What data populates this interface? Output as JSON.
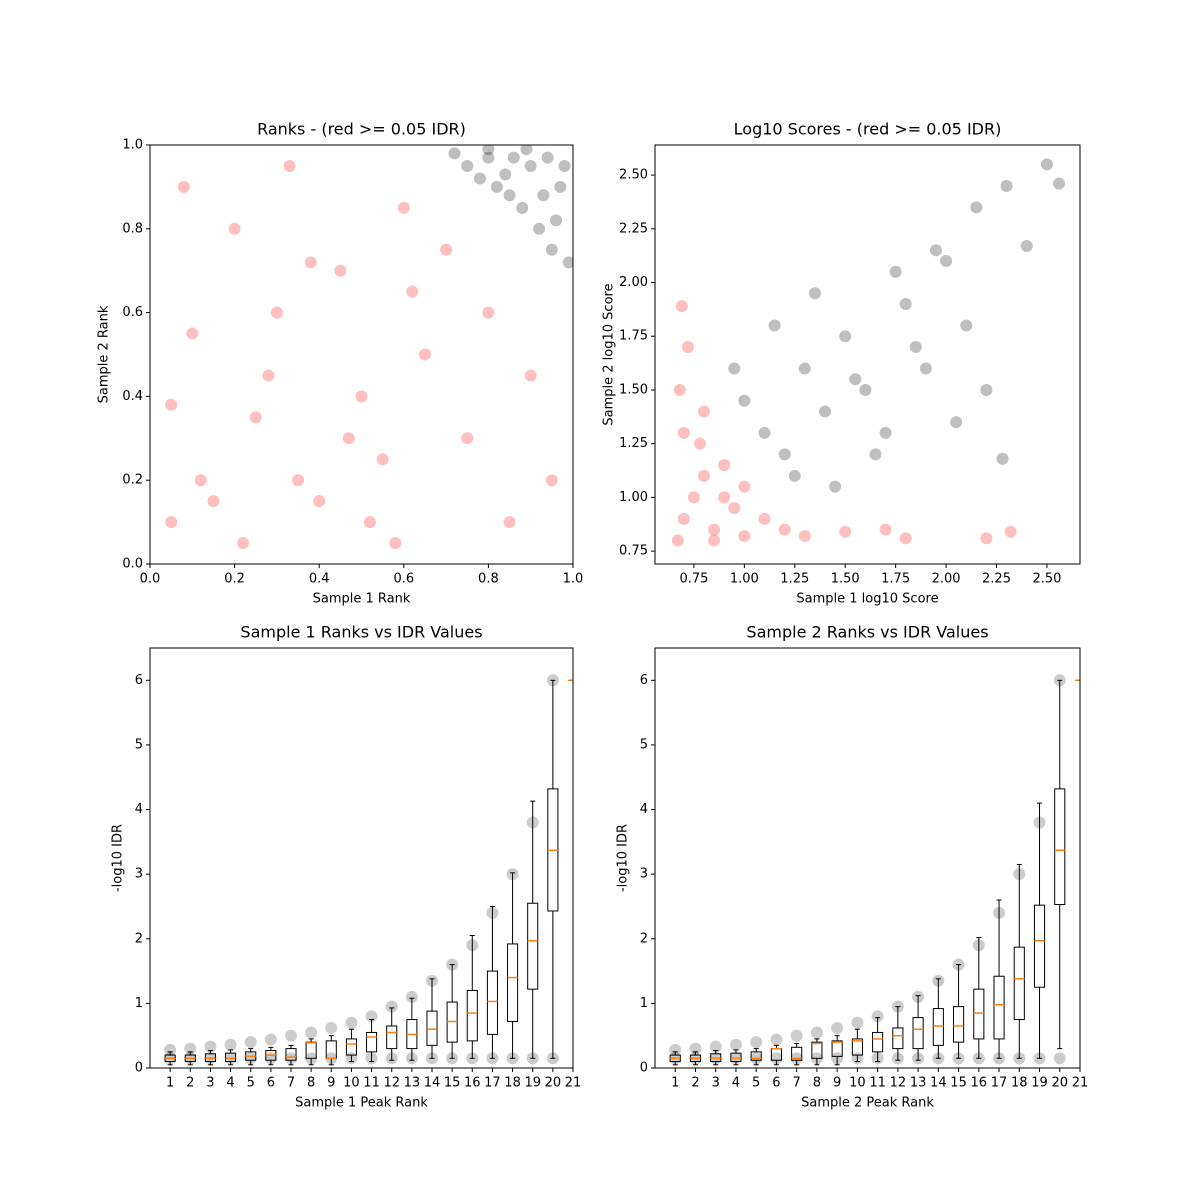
{
  "chart_data": [
    {
      "type": "scatter",
      "title": "Ranks - (red >= 0.05 IDR)",
      "xlabel": "Sample 1 Rank",
      "ylabel": "Sample 2 Rank",
      "xlim": [
        0,
        1
      ],
      "ylim": [
        0,
        1
      ],
      "xticks": [
        {
          "value": 0,
          "label": "0.0"
        },
        {
          "value": 0.2,
          "label": "0.2"
        },
        {
          "value": 0.4,
          "label": "0.4"
        },
        {
          "value": 0.6,
          "label": "0.6"
        },
        {
          "value": 0.8,
          "label": "0.8"
        },
        {
          "value": 1,
          "label": "1.0"
        }
      ],
      "yticks": [
        {
          "value": 0,
          "label": "0.0"
        },
        {
          "value": 0.2,
          "label": "0.2"
        },
        {
          "value": 0.4,
          "label": "0.4"
        },
        {
          "value": 0.6,
          "label": "0.6"
        },
        {
          "value": 0.8,
          "label": "0.8"
        },
        {
          "value": 1,
          "label": "1.0"
        }
      ],
      "series": [
        {
          "color": "#ff0000",
          "x": [
            0.05,
            0.1,
            0.15,
            0.2,
            0.25,
            0.3,
            0.35,
            0.4,
            0.45,
            0.5,
            0.55,
            0.6,
            0.65,
            0.7,
            0.75,
            0.8,
            0.85,
            0.9,
            0.95,
            0.08,
            0.22,
            0.33,
            0.47,
            0.52,
            0.62,
            0.12,
            0.28,
            0.38,
            0.58,
            0.05
          ],
          "values": [
            0.1,
            0.55,
            0.15,
            0.8,
            0.35,
            0.6,
            0.2,
            0.15,
            0.7,
            0.4,
            0.25,
            0.85,
            0.5,
            0.75,
            0.3,
            0.6,
            0.1,
            0.45,
            0.2,
            0.9,
            0.05,
            0.95,
            0.3,
            0.1,
            0.65,
            0.2,
            0.45,
            0.72,
            0.05,
            0.38
          ]
        },
        {
          "color": "#000000",
          "x": [
            0.72,
            0.75,
            0.78,
            0.8,
            0.82,
            0.85,
            0.88,
            0.9,
            0.92,
            0.95,
            0.97,
            0.99,
            0.86,
            0.93,
            0.96,
            0.89,
            0.8,
            0.98,
            0.94,
            0.84
          ],
          "values": [
            0.98,
            0.95,
            0.92,
            0.97,
            0.9,
            0.88,
            0.85,
            0.95,
            0.8,
            0.75,
            0.9,
            0.72,
            0.97,
            0.88,
            0.82,
            0.99,
            0.99,
            0.95,
            0.97,
            0.93
          ]
        }
      ]
    },
    {
      "type": "scatter",
      "title": "Log10 Scores - (red >= 0.05 IDR)",
      "xlabel": "Sample 1 log10 Score",
      "ylabel": "Sample 2 log10 Score",
      "xlim": [
        0.557,
        2.664
      ],
      "ylim": [
        0.69,
        2.64
      ],
      "xticks": [
        0.75,
        {
          "value": 1,
          "label": "1.00"
        },
        1.25,
        {
          "value": 1.5,
          "label": "1.50"
        },
        1.75,
        {
          "value": 2,
          "label": "2.00"
        },
        2.25,
        {
          "value": 2.5,
          "label": "2.50"
        }
      ],
      "yticks": [
        0.75,
        {
          "value": 1,
          "label": "1.00"
        },
        1.25,
        {
          "value": 1.5,
          "label": "1.50"
        },
        1.75,
        {
          "value": 2,
          "label": "2.00"
        },
        2.25,
        {
          "value": 2.5,
          "label": "2.50"
        }
      ],
      "series": [
        {
          "color": "#ff0000",
          "x": [
            0.67,
            0.7,
            0.75,
            0.8,
            0.85,
            0.9,
            0.95,
            1.0,
            1.1,
            1.2,
            1.3,
            1.5,
            1.7,
            0.7,
            0.68,
            0.72,
            0.78,
            0.9,
            0.8,
            0.69,
            2.2,
            2.32,
            1.8,
            0.85,
            1.0
          ],
          "values": [
            0.8,
            0.9,
            1.0,
            1.1,
            0.85,
            1.15,
            0.95,
            0.82,
            0.9,
            0.85,
            0.82,
            0.84,
            0.85,
            1.3,
            1.5,
            1.7,
            1.25,
            1.0,
            1.4,
            1.89,
            0.81,
            0.84,
            0.81,
            0.8,
            1.05
          ]
        },
        {
          "color": "#000000",
          "x": [
            1.0,
            1.1,
            1.2,
            1.3,
            1.4,
            1.5,
            1.6,
            1.7,
            1.8,
            1.9,
            2.0,
            2.1,
            2.2,
            2.3,
            2.4,
            2.56,
            2.5,
            1.25,
            1.45,
            1.65,
            1.85,
            2.05,
            1.15,
            1.35,
            1.55,
            1.75,
            1.95,
            2.15,
            0.95,
            2.28
          ],
          "values": [
            1.45,
            1.3,
            1.2,
            1.6,
            1.4,
            1.75,
            1.5,
            1.3,
            1.9,
            1.6,
            2.1,
            1.8,
            1.5,
            2.45,
            2.17,
            2.46,
            2.55,
            1.1,
            1.05,
            1.2,
            1.7,
            1.35,
            1.8,
            1.95,
            1.55,
            2.05,
            2.15,
            2.35,
            1.6,
            1.18
          ]
        }
      ]
    },
    {
      "type": "box",
      "title": "Sample 1 Ranks vs IDR Values",
      "xlabel": "Sample 1 Peak Rank",
      "ylabel": "-log10 IDR",
      "xlim": [
        0,
        21
      ],
      "ylim": [
        0,
        6.5
      ],
      "xticks": [
        1,
        2,
        3,
        4,
        5,
        6,
        7,
        8,
        9,
        10,
        11,
        12,
        13,
        14,
        15,
        16,
        17,
        18,
        19,
        20,
        21
      ],
      "yticks": [
        0,
        1,
        2,
        3,
        4,
        5,
        6
      ],
      "points": {
        "color": "#000000",
        "x": [
          1,
          2,
          3,
          4,
          5,
          6,
          7,
          8,
          9,
          10,
          11,
          12,
          13,
          14,
          15,
          16,
          17,
          18,
          19,
          20,
          1,
          2,
          3,
          4,
          5,
          6,
          7,
          8,
          9,
          10,
          11,
          12,
          13,
          14,
          15,
          16,
          17,
          18,
          19,
          20
        ],
        "values": [
          0.28,
          0.3,
          0.33,
          0.36,
          0.4,
          0.44,
          0.5,
          0.55,
          0.62,
          0.7,
          0.8,
          0.95,
          1.1,
          1.35,
          1.6,
          1.9,
          2.4,
          3.0,
          3.8,
          6,
          0.15,
          0.15,
          0.15,
          0.15,
          0.15,
          0.15,
          0.15,
          0.15,
          0.15,
          0.15,
          0.15,
          0.15,
          0.15,
          0.15,
          0.15,
          0.15,
          0.15,
          0.15,
          0.15,
          0.15
        ]
      },
      "box_color": "#000000",
      "median_color": "#ff7f0e",
      "positions": [
        1,
        2,
        3,
        4,
        5,
        6,
        7,
        8,
        9,
        10,
        11,
        12,
        13,
        14,
        15,
        16,
        17,
        18,
        19,
        20,
        21
      ],
      "median": [
        0.15,
        0.15,
        0.15,
        0.15,
        0.18,
        0.2,
        0.17,
        0.39,
        0.15,
        0.37,
        0.48,
        0.55,
        0.52,
        0.6,
        0.72,
        0.85,
        1.03,
        1.4,
        1.97,
        3.37,
        6
      ],
      "q1": [
        0.1,
        0.1,
        0.1,
        0.1,
        0.12,
        0.12,
        0.12,
        0.15,
        0.15,
        0.2,
        0.25,
        0.3,
        0.3,
        0.35,
        0.4,
        0.42,
        0.52,
        0.72,
        1.22,
        2.43,
        6
      ],
      "q3": [
        0.2,
        0.2,
        0.22,
        0.23,
        0.25,
        0.27,
        0.3,
        0.4,
        0.42,
        0.45,
        0.55,
        0.65,
        0.75,
        0.88,
        1.02,
        1.2,
        1.5,
        1.92,
        2.55,
        4.32,
        6
      ],
      "whislo": [
        0.05,
        0.05,
        0.05,
        0.05,
        0.05,
        0.05,
        0.05,
        0.05,
        0.05,
        0.1,
        0.1,
        0.12,
        0.12,
        0.15,
        0.15,
        0.15,
        0.15,
        0.15,
        0.15,
        0.15,
        6
      ],
      "whishi": [
        0.25,
        0.25,
        0.27,
        0.28,
        0.3,
        0.32,
        0.35,
        0.45,
        0.5,
        0.6,
        0.75,
        0.93,
        1.08,
        1.38,
        1.6,
        2.05,
        2.5,
        3.02,
        4.13,
        6,
        6
      ]
    },
    {
      "type": "box",
      "title": "Sample 2 Ranks vs IDR Values",
      "xlabel": "Sample 2 Peak Rank",
      "ylabel": "-log10 IDR",
      "xlim": [
        0,
        21
      ],
      "ylim": [
        0,
        6.5
      ],
      "xticks": [
        1,
        2,
        3,
        4,
        5,
        6,
        7,
        8,
        9,
        10,
        11,
        12,
        13,
        14,
        15,
        16,
        17,
        18,
        19,
        20,
        21
      ],
      "yticks": [
        0,
        1,
        2,
        3,
        4,
        5,
        6
      ],
      "points": {
        "color": "#000000",
        "x": [
          1,
          2,
          3,
          4,
          5,
          6,
          7,
          8,
          9,
          10,
          11,
          12,
          13,
          14,
          15,
          16,
          17,
          18,
          19,
          20,
          1,
          2,
          3,
          4,
          5,
          6,
          7,
          8,
          9,
          10,
          11,
          12,
          13,
          14,
          15,
          16,
          17,
          18,
          19,
          20
        ],
        "values": [
          0.28,
          0.3,
          0.33,
          0.36,
          0.4,
          0.44,
          0.5,
          0.55,
          0.62,
          0.7,
          0.8,
          0.95,
          1.1,
          1.35,
          1.6,
          1.9,
          2.4,
          3.0,
          3.8,
          6,
          0.15,
          0.15,
          0.15,
          0.15,
          0.15,
          0.15,
          0.15,
          0.15,
          0.15,
          0.15,
          0.15,
          0.15,
          0.15,
          0.15,
          0.15,
          0.15,
          0.15,
          0.15,
          0.15,
          0.15
        ]
      },
      "box_color": "#000000",
      "median_color": "#ff7f0e",
      "positions": [
        1,
        2,
        3,
        4,
        5,
        6,
        7,
        8,
        9,
        10,
        11,
        12,
        13,
        14,
        15,
        16,
        17,
        18,
        19,
        20,
        21
      ],
      "median": [
        0.15,
        0.15,
        0.15,
        0.15,
        0.15,
        0.3,
        0.15,
        0.38,
        0.4,
        0.42,
        0.45,
        0.5,
        0.6,
        0.65,
        0.65,
        0.85,
        0.98,
        1.38,
        1.97,
        3.37,
        6
      ],
      "q1": [
        0.1,
        0.1,
        0.1,
        0.1,
        0.12,
        0.12,
        0.12,
        0.15,
        0.18,
        0.2,
        0.25,
        0.3,
        0.3,
        0.35,
        0.4,
        0.45,
        0.45,
        0.75,
        1.25,
        2.53,
        6
      ],
      "q3": [
        0.2,
        0.2,
        0.22,
        0.23,
        0.25,
        0.3,
        0.32,
        0.4,
        0.42,
        0.45,
        0.55,
        0.62,
        0.78,
        0.92,
        0.95,
        1.22,
        1.42,
        1.87,
        2.52,
        4.32,
        6
      ],
      "whislo": [
        0.05,
        0.05,
        0.05,
        0.05,
        0.05,
        0.05,
        0.05,
        0.05,
        0.05,
        0.1,
        0.1,
        0.12,
        0.12,
        0.15,
        0.15,
        0.15,
        0.15,
        0.15,
        0.15,
        0.3,
        6
      ],
      "whishi": [
        0.25,
        0.25,
        0.27,
        0.28,
        0.3,
        0.35,
        0.38,
        0.45,
        0.5,
        0.6,
        0.78,
        0.95,
        1.12,
        1.38,
        1.6,
        2.02,
        2.6,
        3.15,
        4.1,
        6,
        6
      ]
    }
  ]
}
